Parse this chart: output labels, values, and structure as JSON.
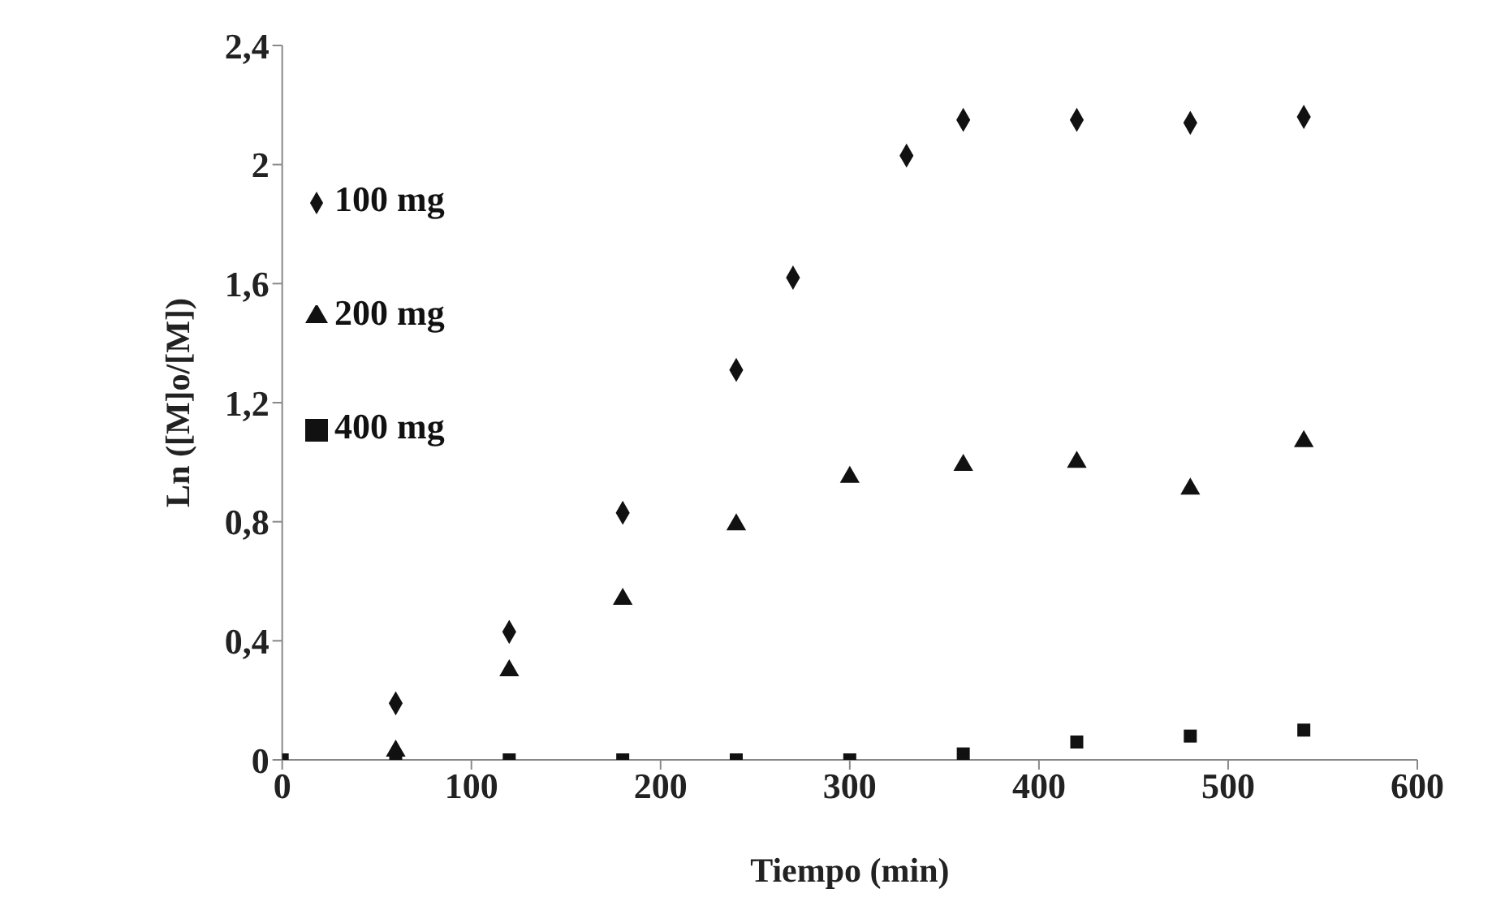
{
  "chart_data": {
    "type": "scatter",
    "xlabel": "Tiempo (min)",
    "ylabel": "Ln ([M]o/[M])",
    "xlim": [
      0,
      600
    ],
    "xticks": [
      0,
      100,
      200,
      300,
      400,
      500,
      600
    ],
    "ylim": [
      0,
      2.4
    ],
    "yticks": [
      {
        "value": 0,
        "label": "0"
      },
      {
        "value": 0.4,
        "label": "0,4"
      },
      {
        "value": 0.8,
        "label": "0,8"
      },
      {
        "value": 1.2,
        "label": "1,2"
      },
      {
        "value": 1.6,
        "label": "1,6"
      },
      {
        "value": 2,
        "label": "2"
      },
      {
        "value": 2.4,
        "label": "2,4"
      }
    ],
    "grid": false,
    "legend": "top left",
    "series": [
      {
        "name": "100 mg",
        "color": "#111111",
        "marker": "diamond",
        "x": [
          60,
          120,
          180,
          240,
          270,
          330,
          360,
          420,
          480,
          540
        ],
        "values": [
          0.19,
          0.43,
          0.83,
          1.31,
          1.62,
          2.03,
          2.15,
          2.15,
          2.14,
          2.16
        ]
      },
      {
        "name": "200 mg",
        "color": "#111111",
        "marker": "triangle",
        "x": [
          60,
          120,
          180,
          240,
          300,
          360,
          420,
          480,
          540
        ],
        "values": [
          0.03,
          0.3,
          0.54,
          0.79,
          0.95,
          0.99,
          1.0,
          0.91,
          1.07
        ]
      },
      {
        "name": "400 mg",
        "color": "#111111",
        "marker": "square",
        "x": [
          0,
          60,
          120,
          180,
          240,
          300,
          360,
          420,
          480,
          540
        ],
        "values": [
          0,
          0,
          0,
          0,
          0,
          0,
          0.02,
          0.06,
          0.08,
          0.1
        ]
      }
    ]
  }
}
